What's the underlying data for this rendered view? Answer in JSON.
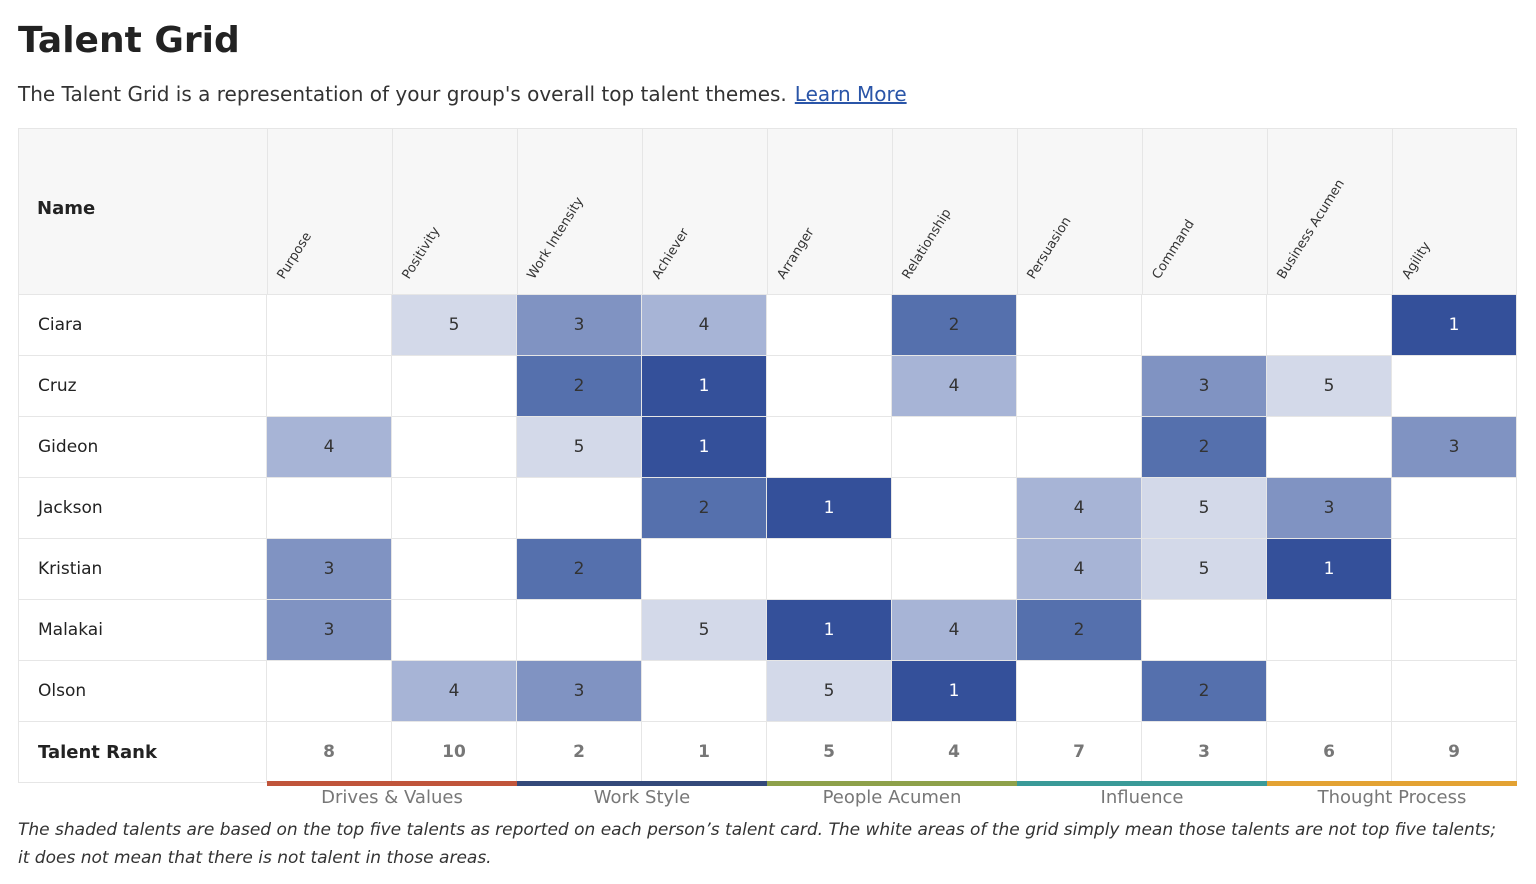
{
  "header": {
    "title": "Talent Grid",
    "subtitle": "The Talent Grid is a representation of your group's overall top talent themes.",
    "link": "Learn More"
  },
  "table": {
    "name_header": "Name",
    "columns": [
      "Purpose",
      "Positivity",
      "Work Intensity",
      "Achiever",
      "Arranger",
      "Relationship",
      "Persuasion",
      "Command",
      "Business Acumen",
      "Agility"
    ],
    "rows": [
      {
        "name": "Ciara",
        "values": [
          null,
          5,
          3,
          4,
          null,
          2,
          null,
          null,
          null,
          1
        ]
      },
      {
        "name": "Cruz",
        "values": [
          null,
          null,
          2,
          1,
          null,
          4,
          null,
          3,
          5,
          null
        ]
      },
      {
        "name": "Gideon",
        "values": [
          4,
          null,
          5,
          1,
          null,
          null,
          null,
          2,
          null,
          3
        ]
      },
      {
        "name": "Jackson",
        "values": [
          null,
          null,
          null,
          2,
          1,
          null,
          4,
          5,
          3,
          null
        ]
      },
      {
        "name": "Kristian",
        "values": [
          3,
          null,
          2,
          null,
          null,
          null,
          4,
          5,
          1,
          null
        ]
      },
      {
        "name": "Malakai",
        "values": [
          3,
          null,
          null,
          5,
          1,
          4,
          2,
          null,
          null,
          null
        ]
      },
      {
        "name": "Olson",
        "values": [
          null,
          4,
          3,
          null,
          5,
          1,
          null,
          2,
          null,
          null
        ]
      }
    ],
    "rank_colors": [
      "#34509a",
      "#5570ad",
      "#8093c2",
      "#a7b4d6",
      "#d3d9e9"
    ],
    "rank_text_colors": [
      "#ffffff",
      "#333333",
      "#333333",
      "#333333",
      "#333333"
    ],
    "total_label": "Talent Rank",
    "talent_rank": [
      8,
      10,
      2,
      1,
      5,
      4,
      7,
      3,
      6,
      9
    ],
    "groups": [
      {
        "name": "Drives & Values",
        "color": "#c0553b"
      },
      {
        "name": "Work Style",
        "color": "#34497a"
      },
      {
        "name": "People Acumen",
        "color": "#8ea14a"
      },
      {
        "name": "Influence",
        "color": "#3a9a98"
      },
      {
        "name": "Thought Process",
        "color": "#e3a233"
      }
    ]
  },
  "footnote": "The shaded talents are based on the top five talents as reported on each person’s talent card. The white areas of the grid simply mean those talents are not top five talents; it does not mean that there is not talent in those areas."
}
